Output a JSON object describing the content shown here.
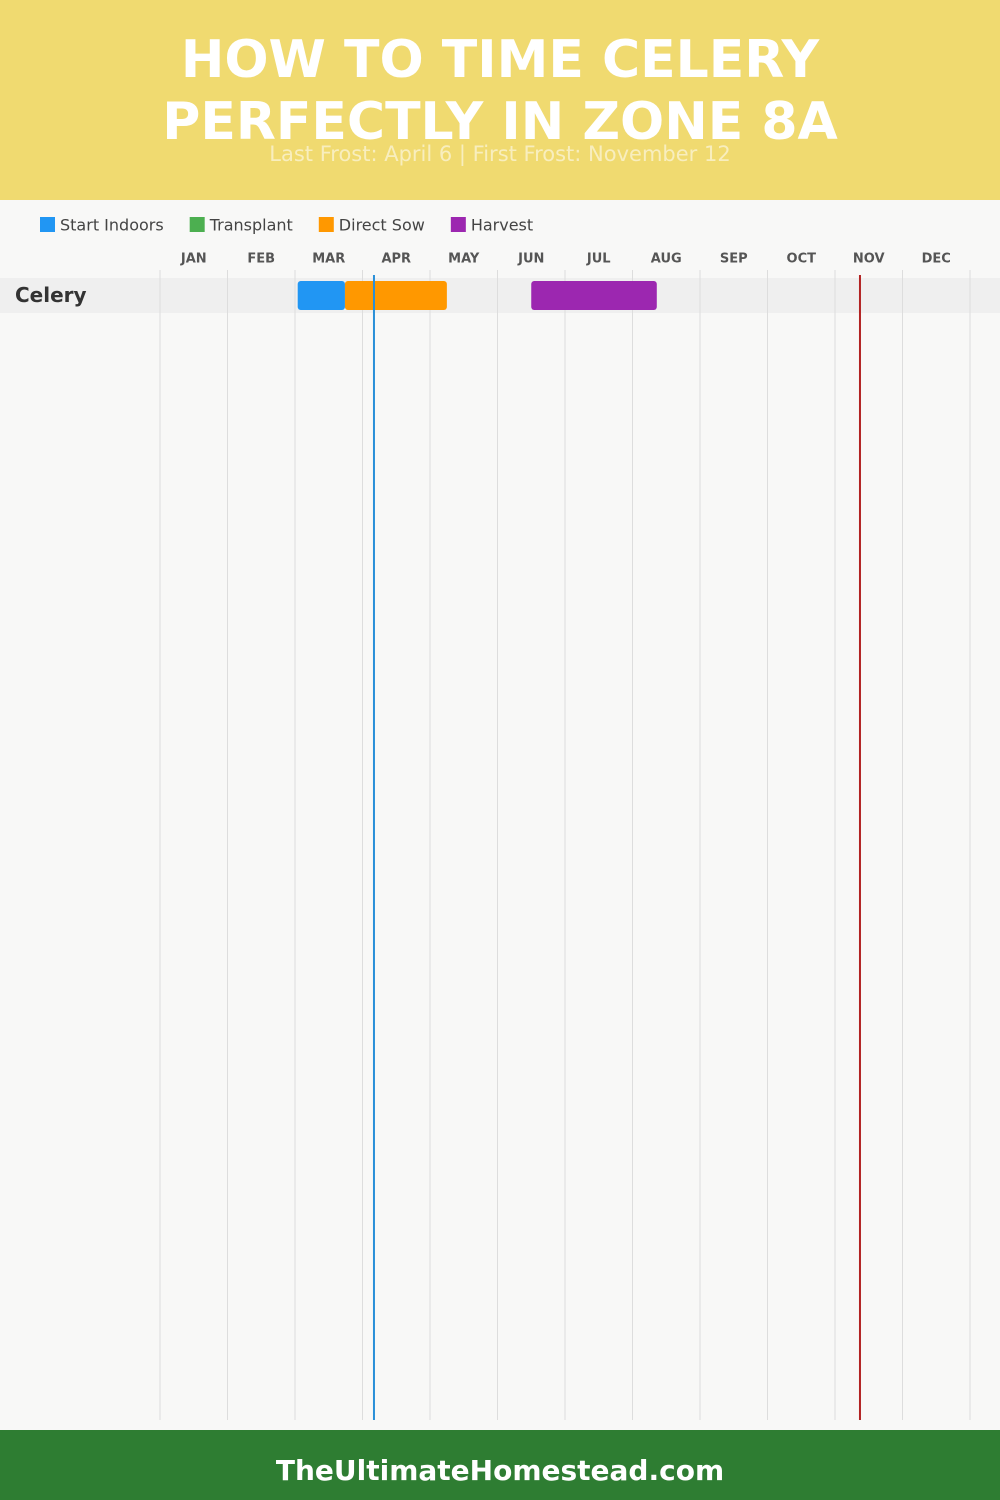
{
  "chart_data": {
    "type": "gantt",
    "title": [
      "HOW TO TIME CELERY",
      "PERFECTLY IN ZONE 8A"
    ],
    "subtitle": "Last Frost: April 6 | First Frost: November 12",
    "categories": [
      "JAN",
      "FEB",
      "MAR",
      "APR",
      "MAY",
      "JUN",
      "JUL",
      "AUG",
      "SEP",
      "OCT",
      "NOV",
      "DEC"
    ],
    "xlim": [
      0,
      12
    ],
    "rows": [
      "Celery"
    ],
    "series": [
      {
        "name": "Start Indoors",
        "color": "#2196f3",
        "ranges": [
          [
            2.04,
            2.74
          ]
        ]
      },
      {
        "name": "Transplant",
        "color": "#4caf50",
        "ranges": []
      },
      {
        "name": "Direct Sow",
        "color": "#ff9800",
        "ranges": [
          [
            2.74,
            4.25
          ]
        ]
      },
      {
        "name": "Harvest",
        "color": "#9c27b0",
        "ranges": [
          [
            5.5,
            7.36
          ]
        ]
      }
    ],
    "last_frost": 3.17,
    "last_frost_color": "#2a8fd8",
    "first_frost": 10.37,
    "first_frost_color": "#b22222",
    "footer": "TheUltimateHomestead.com"
  }
}
